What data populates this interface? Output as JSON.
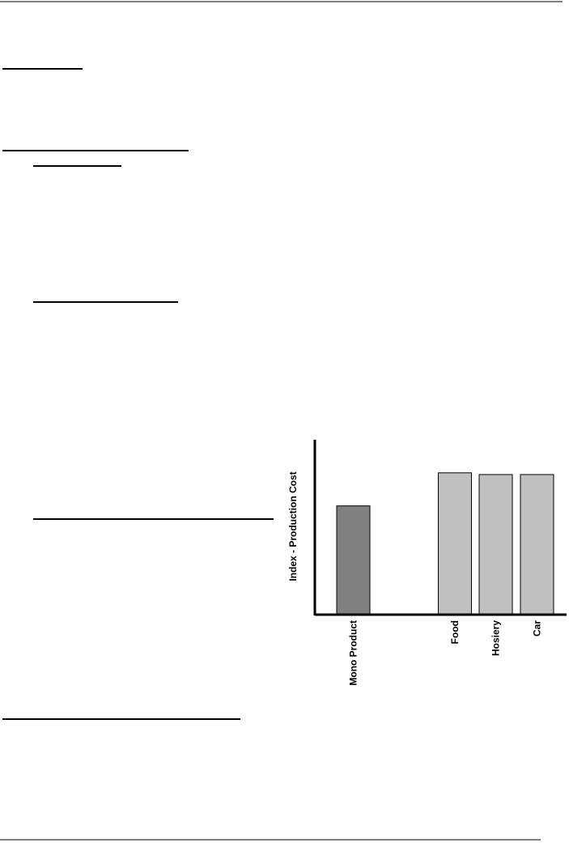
{
  "chart_data": {
    "type": "bar",
    "y_label": "Index - Production Cost",
    "categories": [
      "Mono Product",
      "Food",
      "Hosiery",
      "Car"
    ],
    "values": [
      62,
      81,
      80,
      80
    ],
    "colors": [
      "#808080",
      "#c0c0c0",
      "#c0c0c0",
      "#c0c0c0"
    ],
    "ylim": [
      0,
      100
    ]
  }
}
